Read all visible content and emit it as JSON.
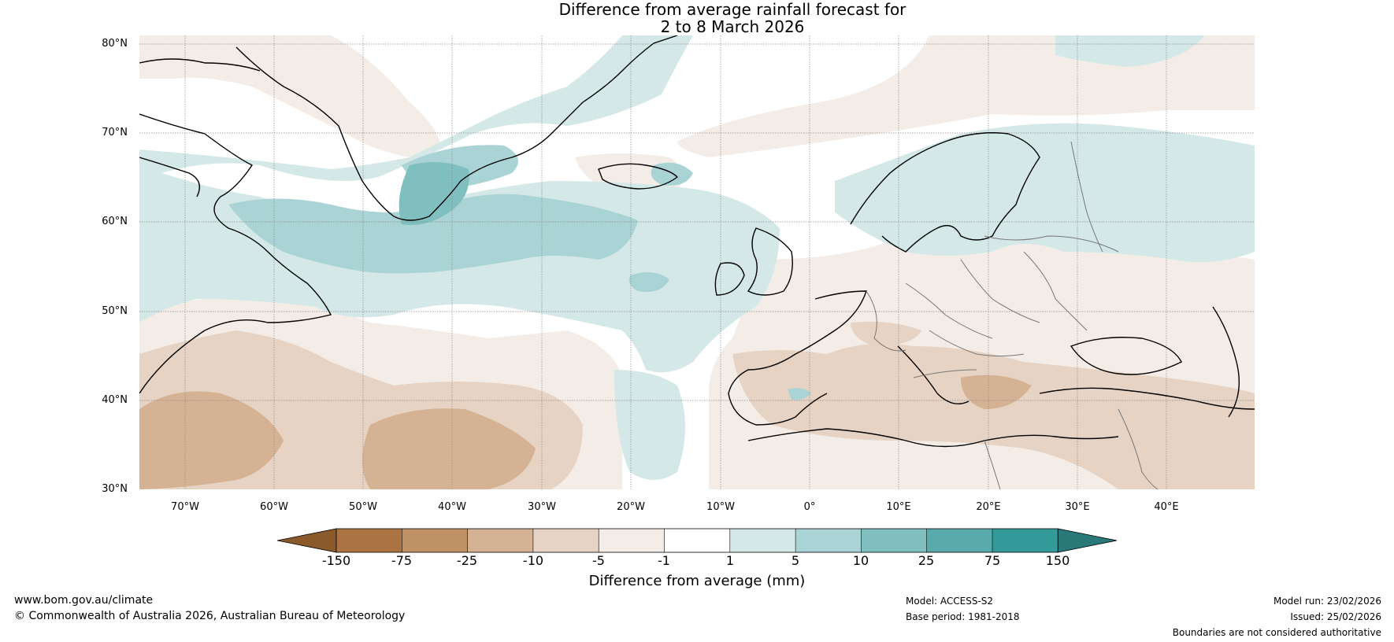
{
  "title": {
    "line1": "Difference from average rainfall forecast for",
    "line2": "2 to 8 March 2026"
  },
  "latitude_labels": [
    "80°N",
    "70°N",
    "60°N",
    "50°N",
    "40°N",
    "30°N"
  ],
  "longitude_labels": [
    "70°W",
    "60°W",
    "50°W",
    "40°W",
    "30°W",
    "20°W",
    "10°W",
    "0°",
    "10°E",
    "20°E",
    "30°E",
    "40°E"
  ],
  "colorbar": {
    "title": "Difference from average (mm)",
    "tick_labels": [
      "-150",
      "-75",
      "-25",
      "-10",
      "-5",
      "-1",
      "1",
      "5",
      "10",
      "25",
      "75",
      "150"
    ],
    "colors": [
      "#8a5a2b",
      "#ad7443",
      "#c09166",
      "#d5b293",
      "#e6d3c3",
      "#f4ede7",
      "#ffffff",
      "#d5e8e8",
      "#a9d3d4",
      "#80bfbf",
      "#59abab",
      "#339a99",
      "#287978"
    ]
  },
  "footer": {
    "website": "www.bom.gov.au/climate",
    "copyright": "© Commonwealth of Australia 2026, Australian Bureau of Meteorology",
    "model": "Model: ACCESS-S2",
    "base_period": "Base period: 1981-2018",
    "model_run": "Model run: 23/02/2026",
    "issued": "Issued: 25/02/2026",
    "disclaimer": "Boundaries are not considered authoritative"
  }
}
